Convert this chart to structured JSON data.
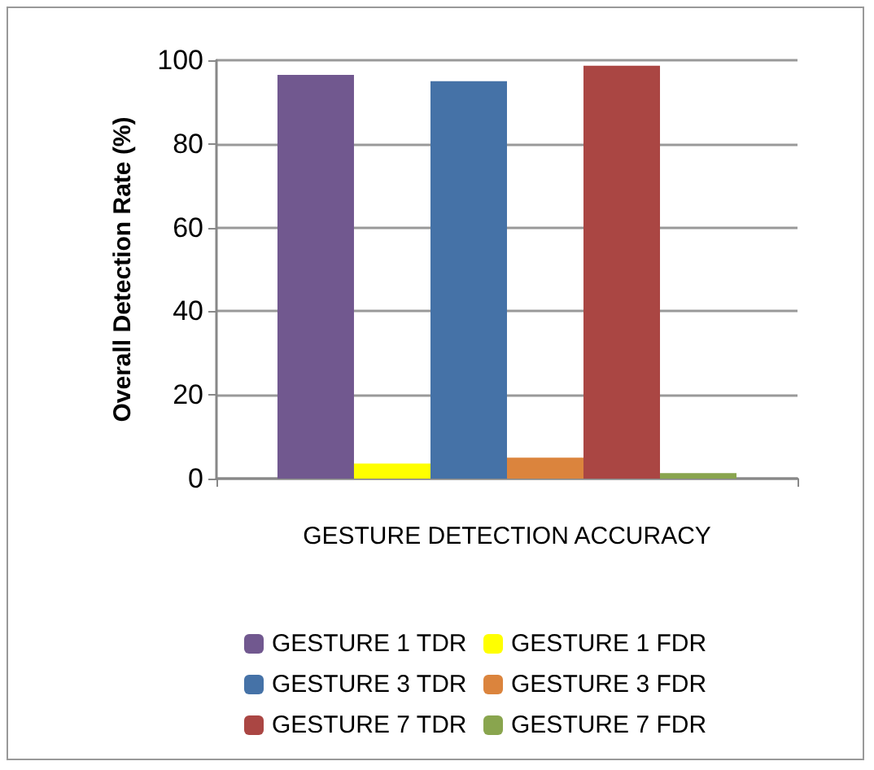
{
  "chart_data": {
    "type": "bar",
    "ylabel": "Overall Detection Rate (%)",
    "categories": [
      "GESTURE DETECTION ACCURACY"
    ],
    "series": [
      {
        "name": "GESTURE 1 TDR",
        "color": "#71588f",
        "values": [
          96.5
        ]
      },
      {
        "name": "GESTURE 1 FDR",
        "color": "#ffff00",
        "values": [
          3.6
        ]
      },
      {
        "name": "GESTURE 3 TDR",
        "color": "#4572a7",
        "values": [
          95
        ]
      },
      {
        "name": "GESTURE 3 FDR",
        "color": "#db843d",
        "values": [
          5
        ]
      },
      {
        "name": "GESTURE 7 TDR",
        "color": "#aa4643",
        "values": [
          98.7
        ]
      },
      {
        "name": "GESTURE 7 FDR",
        "color": "#89a54e",
        "values": [
          1.3
        ]
      }
    ],
    "ylim": [
      0,
      100
    ],
    "yticks": [
      0,
      20,
      40,
      60,
      80,
      100
    ],
    "grid": "y",
    "legend": "bottom"
  }
}
